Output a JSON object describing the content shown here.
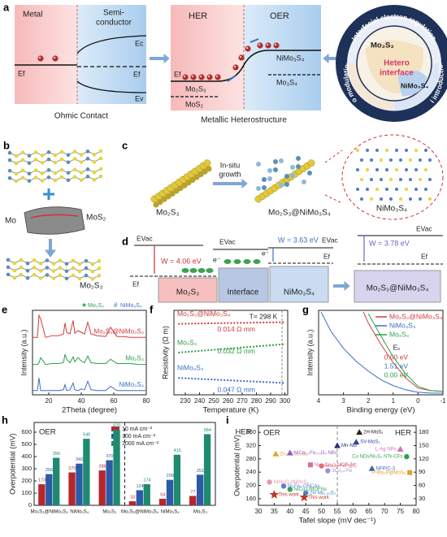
{
  "figure": {
    "a": {
      "label": "a",
      "metal": "Metal",
      "semi": [
        "Semi-",
        "conductor"
      ],
      "ec": "Ec",
      "ef_metal": "Ef",
      "ef_semi": "Ef",
      "ev": "Ev",
      "ohmic": "Ohmic Contact",
      "her": "HER",
      "oer": "OER",
      "ef": "Ef",
      "mo2s3": "Mo₂S₃",
      "mos2": "MoS₂",
      "nimo3s4": "NiMo₃S₄",
      "mo3s4": "Mo₃S₄",
      "metallic": "Metallic Heterostructure",
      "ring": [
        "Interfacial electron regulation",
        "Mo modulation",
        "Ni introduction"
      ],
      "core": [
        "Mo₂S₃",
        "Hetero",
        "interface",
        "NiMo₃S₄"
      ]
    },
    "b": {
      "label": "b",
      "mos2": "MoS₂",
      "mo": "Mo",
      "mo2s3": "Mo₂S₃"
    },
    "c": {
      "label": "c",
      "mo2s3": "Mo₂S₃",
      "growth": [
        "In-situ",
        "growth"
      ],
      "hetero": "Mo₂S₃@NiMo₃S₄",
      "nimo3s4": "NiMo₃S₄"
    },
    "d": {
      "label": "d",
      "evac": [
        "EVac",
        "EVac",
        "EVac",
        "EVac"
      ],
      "w": [
        "W = 4.06 eV",
        "W = 3.63 eV",
        "W = 3.78 eV"
      ],
      "ef": [
        "Ef",
        "Ef",
        "Ef"
      ],
      "electron": [
        "e⁻",
        "e⁻"
      ],
      "boxes": [
        "Mo₂S₃",
        "Interface",
        "NiMo₃S₄",
        "Mo₂S₃@NiMo₃S₄"
      ]
    },
    "panel_labels": [
      "e",
      "f",
      "g",
      "h",
      "i"
    ]
  },
  "chart_data": [
    {
      "type": "line",
      "xlabel": "2Theta (degree)",
      "ylabel": "Intensity (a.u.)",
      "xlim": [
        10,
        80
      ],
      "xticks": [
        20,
        40,
        60,
        80
      ],
      "ylim": [
        0,
        100
      ],
      "markers": [
        {
          "symbol": "★",
          "name": "Mo₂S₃",
          "color": "#2e9e4a"
        },
        {
          "symbol": "#",
          "name": "NiMo₃S₄",
          "color": "#3a6fc4"
        }
      ],
      "x": [
        10,
        13,
        14,
        15,
        18,
        22,
        26,
        29,
        30,
        31,
        33,
        35,
        36,
        38,
        40,
        42,
        44,
        46,
        50,
        55,
        58,
        62,
        66,
        70,
        75,
        80
      ],
      "series": [
        {
          "name": "Mo₂S₃@NiMo₃S₄",
          "color": "#d23b3b",
          "values": [
            68,
            68,
            94,
            90,
            68,
            70,
            70,
            72,
            85,
            74,
            72,
            88,
            73,
            76,
            74,
            72,
            86,
            72,
            70,
            69,
            80,
            69,
            69,
            68,
            68,
            68
          ]
        },
        {
          "name": "Mo₂S₃",
          "color": "#2e9e4a",
          "values": [
            36,
            36,
            38,
            44,
            36,
            37,
            37,
            38,
            48,
            42,
            38,
            45,
            39,
            44,
            40,
            38,
            46,
            38,
            37,
            37,
            42,
            37,
            37,
            37,
            36,
            36
          ]
        },
        {
          "name": "NiMo₃S₄",
          "color": "#3a6fc4",
          "values": [
            5,
            5,
            20,
            5,
            5,
            5,
            5,
            6,
            12,
            5,
            6,
            14,
            6,
            5,
            7,
            6,
            16,
            6,
            5,
            5,
            10,
            5,
            5,
            5,
            5,
            5
          ]
        }
      ]
    },
    {
      "type": "line",
      "xlabel": "Temperature (K)",
      "ylabel": "Resistivity (Ω m)",
      "xlim": [
        222,
        302
      ],
      "xticks": [
        230,
        240,
        250,
        260,
        270,
        280,
        290,
        300
      ],
      "ylim": [
        0,
        100
      ],
      "annotation": "T= 298 K",
      "marker_x": 298,
      "series": [
        {
          "name": "Mo₂S₃@NiMo₃S₄",
          "color": "#d23b3b",
          "x": [
            225,
            300
          ],
          "values": [
            84,
            86
          ],
          "note": "0.014 Ω mm"
        },
        {
          "name": "Mo₂S₃",
          "color": "#2e9e4a",
          "x": [
            225,
            300
          ],
          "values": [
            50,
            60
          ],
          "note": "0.032 Ω mm"
        },
        {
          "name": "NiMo₃S₄",
          "color": "#3a6fc4",
          "x": [
            225,
            300
          ],
          "values": [
            20,
            14
          ],
          "note": "0.047 Ω mm"
        }
      ]
    },
    {
      "type": "line",
      "xlabel": "Binding energy (eV)",
      "ylabel": "Intensity (a.u.)",
      "xlim": [
        4,
        -1
      ],
      "xticks": [
        4,
        3,
        2,
        1,
        0,
        -1
      ],
      "ylim": [
        0,
        100
      ],
      "ev_title": "Eᵥ",
      "series": [
        {
          "name": "Mo₂S₃@NiMo₃S₄",
          "color": "#d23b3b",
          "x": [
            2.2,
            2,
            1.5,
            1,
            0.5,
            0,
            -0.5,
            -1
          ],
          "values": [
            98,
            85,
            60,
            38,
            20,
            8,
            5,
            4
          ],
          "note": "0.00 eV"
        },
        {
          "name": "NiMo₃S₄",
          "color": "#3a6fc4",
          "x": [
            3.9,
            3.5,
            3,
            2.5,
            2,
            1.5,
            1,
            0.5,
            0,
            -0.5,
            -1
          ],
          "values": [
            98,
            75,
            55,
            40,
            28,
            18,
            11,
            6,
            3,
            2,
            2
          ],
          "note": "1.51 eV"
        },
        {
          "name": "Mo₂S₃",
          "color": "#2e9e4a",
          "x": [
            2,
            1.5,
            1,
            0.5,
            0,
            -0.5,
            -1
          ],
          "values": [
            96,
            70,
            45,
            25,
            10,
            5,
            4
          ],
          "note": "0.00 eV"
        }
      ]
    },
    {
      "type": "bar",
      "ylabel": "Overpotential (mV)",
      "ylim": [
        0,
        680
      ],
      "yticks": [
        0,
        100,
        200,
        300,
        400,
        500,
        600
      ],
      "groups": [
        "OER",
        "HER"
      ],
      "categories": [
        "Mo₂S₃@NiMo₃S₄",
        "NiMo₃S₄",
        "Mo₂S₃",
        "Mo₂S₃@NiMo₃S₄",
        "NiMo₃S₄",
        "Mo₂S₃"
      ],
      "series": [
        {
          "name": "10 mA cm⁻²",
          "color": "#b5272d",
          "values": [
            173,
            270,
            286,
            33,
            54,
            77
          ]
        },
        {
          "name": "100 mA cm⁻²",
          "color": "#2b5aa8",
          "values": [
            256,
            342,
            370,
            124,
            209,
            251
          ]
        },
        {
          "name": "1000 mA cm⁻²",
          "color": "#1f8a70",
          "values": [
            390,
            546,
            620,
            174,
            415,
            584
          ]
        }
      ]
    },
    {
      "type": "scatter",
      "xlabel": "Tafel slope (mV dec⁻¹)",
      "ylabel": "Overpotential (mV)",
      "groups": [
        "OER",
        "HER"
      ],
      "xlim": [
        30,
        80
      ],
      "xticks": [
        30,
        35,
        40,
        45,
        50,
        55,
        60,
        65,
        70,
        75,
        80
      ],
      "ylim": [
        140,
        380
      ],
      "yticks": [
        160,
        200,
        240,
        280,
        320,
        360
      ],
      "y2lim": [
        15,
        195
      ],
      "y2ticks": [
        30,
        60,
        90,
        120,
        150,
        180
      ],
      "series": [
        {
          "name": "Zn₀.₃Co₂.₇O₄",
          "color": "#e8a030",
          "marker": "triangle",
          "x": [
            35.5
          ],
          "values": [
            295
          ]
        },
        {
          "name": "NiMoO₄/NiMoS₄",
          "color": "#e39aae",
          "marker": "circle",
          "x": [
            33.5
          ],
          "values": [
            210
          ]
        },
        {
          "name": "Ni₂Fe₁-ONCAs",
          "color": "#5b7fd0",
          "marker": "circle",
          "x": [
            38
          ],
          "values": [
            198
          ]
        },
        {
          "name": "NiCo-UMOFNs",
          "color": "#3aa060",
          "marker": "circle",
          "x": [
            40
          ],
          "values": [
            188
          ]
        },
        {
          "name": "NiCo₂.₇Fe₀.₅O₄ NBs",
          "color": "#9060c0",
          "marker": "triangle",
          "x": [
            40
          ],
          "values": [
            298
          ]
        },
        {
          "name": "Ni₀.₃Co₂.₇-MOF-74",
          "color": "#d070a0",
          "marker": "square",
          "x": [
            46.5
          ],
          "values": [
            262
          ]
        },
        {
          "name": "This work",
          "color": "#c0392b",
          "marker": "star",
          "x": [
            35
          ],
          "values": [
            172
          ]
        },
        {
          "name": "Mn-NG",
          "color": "#2a2a80",
          "marker": "triangle",
          "axis": "y2",
          "x": [
            55
          ],
          "values": [
            150
          ]
        },
        {
          "name": "2H-MoS₂",
          "color": "#222222",
          "marker": "triangle",
          "axis": "y2",
          "x": [
            62
          ],
          "values": [
            180
          ]
        },
        {
          "name": "SV-MoS₂",
          "color": "#3344aa",
          "marker": "triangle",
          "axis": "y2",
          "x": [
            61
          ],
          "values": [
            158
          ]
        },
        {
          "name": "L-Ag NPs",
          "color": "#d070c0",
          "marker": "triangle",
          "axis": "y2",
          "x": [
            75
          ],
          "values": [
            142
          ]
        },
        {
          "name": "Cu NDs/Ni₃S₂ NTs-CFs",
          "color": "#30a050",
          "marker": "circle",
          "axis": "y2",
          "x": [
            77
          ],
          "values": [
            125
          ]
        },
        {
          "name": "MoO₂-FeP@C",
          "color": "#e07070",
          "marker": "circle",
          "axis": "y2",
          "x": [
            50
          ],
          "values": [
            104
          ]
        },
        {
          "name": "3Co₂₄-Fe",
          "color": "#a090d0",
          "marker": "circle",
          "axis": "y2",
          "x": [
            52
          ],
          "values": [
            93
          ]
        },
        {
          "name": "NFP/C-3",
          "color": "#4060c0",
          "marker": "triangle",
          "axis": "y2",
          "x": [
            66
          ],
          "values": [
            98
          ]
        },
        {
          "name": "P-Mo₂P@MoS₂",
          "color": "#e0a030",
          "marker": "square",
          "axis": "y2",
          "x": [
            78
          ],
          "values": [
            89
          ]
        },
        {
          "name": "2H Nb₁.₃₅S₂",
          "color": "#4488cc",
          "marker": "circle",
          "axis": "y2",
          "x": [
            45
          ],
          "values": [
            43
          ]
        },
        {
          "name": "This work",
          "color": "#c0392b",
          "marker": "star",
          "axis": "y2",
          "x": [
            44.5
          ],
          "values": [
            33
          ]
        }
      ]
    }
  ]
}
